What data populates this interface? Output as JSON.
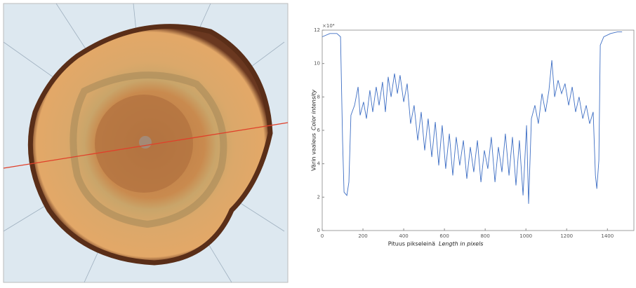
{
  "chart_data": {
    "type": "line",
    "xlabel": [
      "Pituus pikseleinä",
      "Length in pixels"
    ],
    "ylabel": [
      "Värin vaaleus",
      "Color intensity"
    ],
    "y_offset_label": "×10⁴",
    "x": [
      0,
      38,
      72,
      90,
      100,
      107,
      121,
      131,
      141,
      159,
      176,
      186,
      203,
      217,
      234,
      248,
      265,
      279,
      296,
      310,
      324,
      338,
      355,
      369,
      382,
      400,
      417,
      434,
      451,
      469,
      486,
      503,
      520,
      538,
      555,
      572,
      589,
      606,
      624,
      641,
      658,
      675,
      693,
      710,
      727,
      744,
      762,
      779,
      796,
      813,
      830,
      848,
      865,
      882,
      899,
      917,
      934,
      951,
      968,
      986,
      1003,
      1013,
      1027,
      1044,
      1061,
      1079,
      1096,
      1113,
      1127,
      1141,
      1158,
      1175,
      1192,
      1210,
      1227,
      1244,
      1261,
      1279,
      1296,
      1313,
      1330,
      1341,
      1348,
      1358,
      1365,
      1382,
      1416,
      1451,
      1472
    ],
    "series": [
      {
        "color": "#3f6fc4",
        "values": [
          11.6,
          11.8,
          11.8,
          11.6,
          5.4,
          2.3,
          2.1,
          2.9,
          6.9,
          7.5,
          8.6,
          6.9,
          7.7,
          6.7,
          8.4,
          7.1,
          8.6,
          7.5,
          8.9,
          7.1,
          9.2,
          8.0,
          9.4,
          8.2,
          9.3,
          7.7,
          8.8,
          6.4,
          7.5,
          5.4,
          7.1,
          4.8,
          6.7,
          4.4,
          6.5,
          3.9,
          6.3,
          3.7,
          5.8,
          3.3,
          5.6,
          3.9,
          5.4,
          3.1,
          5.0,
          3.5,
          5.4,
          2.9,
          4.8,
          3.7,
          5.6,
          2.9,
          5.0,
          3.5,
          5.8,
          3.3,
          5.6,
          2.7,
          5.4,
          2.1,
          6.3,
          1.6,
          6.7,
          7.5,
          6.4,
          8.2,
          7.1,
          8.4,
          10.2,
          8.0,
          9.0,
          8.2,
          8.8,
          7.5,
          8.6,
          7.1,
          8.0,
          6.7,
          7.5,
          6.4,
          7.1,
          3.3,
          2.5,
          4.2,
          11.1,
          11.6,
          11.8,
          11.9,
          11.9
        ]
      }
    ],
    "xlim": [
      0,
      1530
    ],
    "xticks": [
      0,
      200,
      400,
      600,
      800,
      1000,
      1200,
      1400
    ],
    "ylim": [
      0,
      12
    ],
    "yticks": [
      0,
      2,
      4,
      6,
      8,
      10,
      12
    ]
  }
}
